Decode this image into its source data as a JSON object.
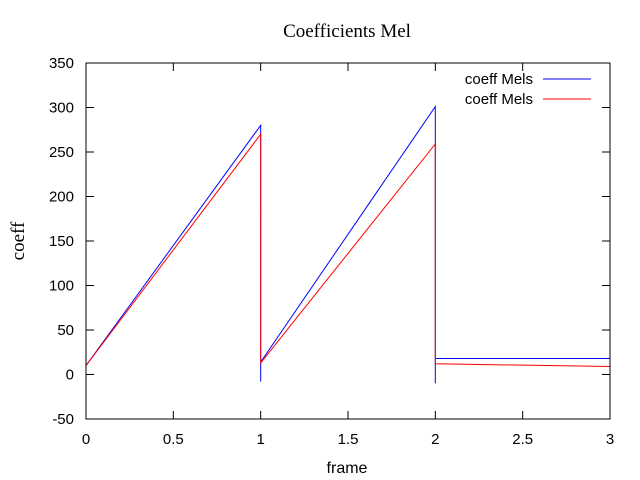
{
  "chart_data": {
    "type": "line",
    "title": "Coefficients Mel",
    "xlabel": "frame",
    "ylabel": "coeff",
    "xlim": [
      0,
      3
    ],
    "ylim": [
      -50,
      350
    ],
    "x_ticks": [
      "0",
      "0.5",
      "1",
      "1.5",
      "2",
      "2.5",
      "3"
    ],
    "y_ticks": [
      "-50",
      "0",
      "50",
      "100",
      "150",
      "200",
      "250",
      "300",
      "350"
    ],
    "grid": false,
    "legend_position": "top-right",
    "series": [
      {
        "name": "coeff Mels",
        "color": "#0000ff",
        "points": [
          [
            0,
            10
          ],
          [
            1,
            280
          ],
          [
            1,
            -8
          ],
          [
            1,
            14
          ],
          [
            2,
            301
          ],
          [
            2,
            -10
          ],
          [
            2,
            18
          ],
          [
            3,
            18
          ]
        ]
      },
      {
        "name": "coeff Mels",
        "color": "#ff0000",
        "points": [
          [
            0,
            10
          ],
          [
            1,
            270
          ],
          [
            1,
            13
          ],
          [
            2,
            259
          ],
          [
            2,
            12
          ],
          [
            3,
            9
          ]
        ]
      }
    ]
  }
}
